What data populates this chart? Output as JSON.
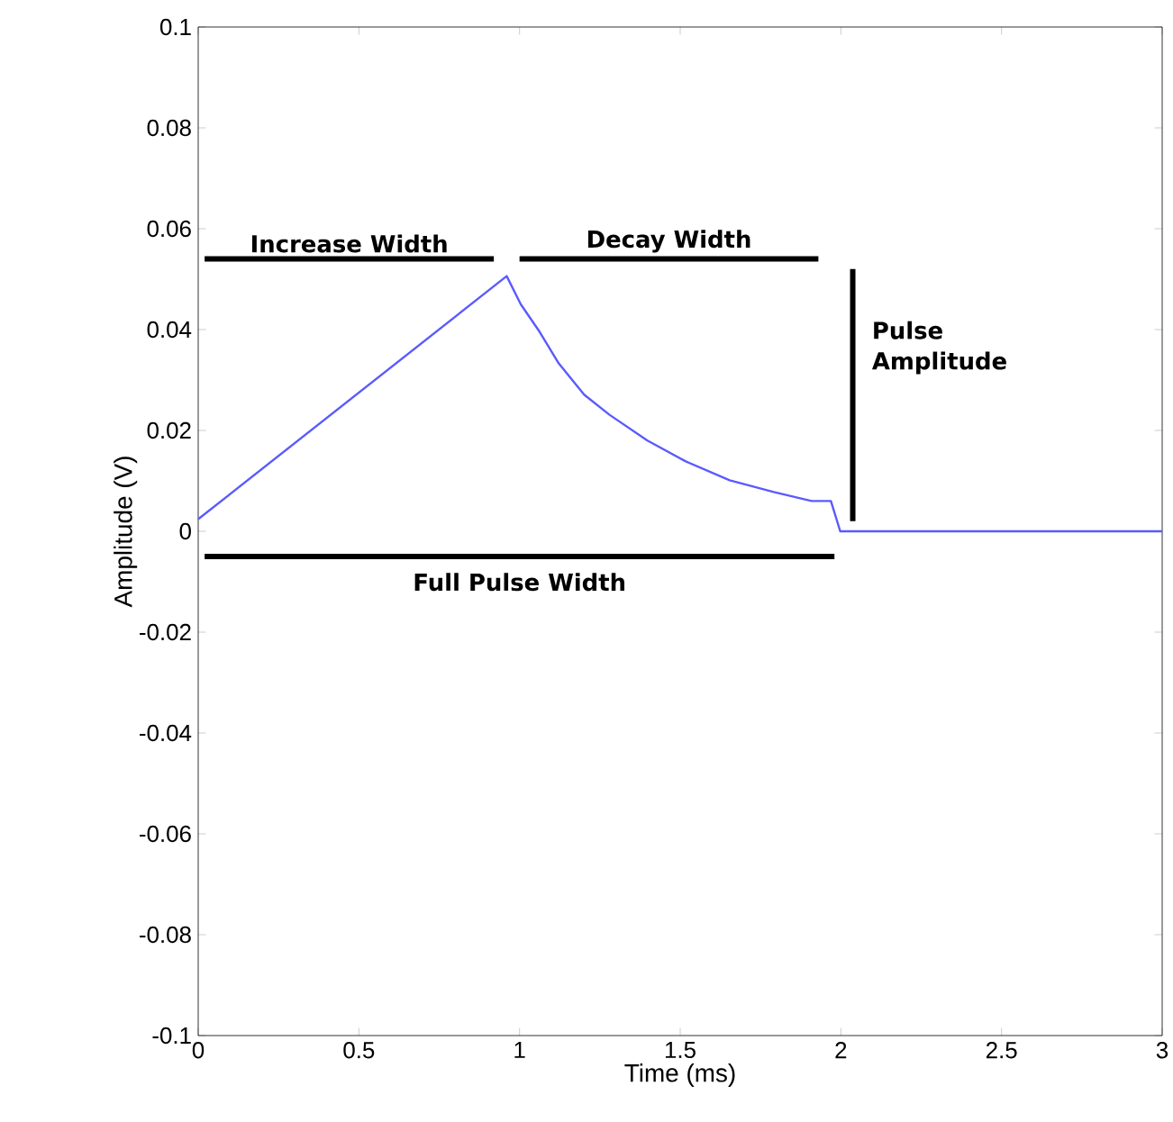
{
  "chart_data": {
    "type": "line",
    "xlabel": "Time (ms)",
    "ylabel": "Amplitude (V)",
    "x": [
      0,
      0.96,
      1.004,
      1.063,
      1.122,
      1.201,
      1.28,
      1.398,
      1.516,
      1.654,
      1.791,
      1.909,
      1.969,
      1.998,
      3.0
    ],
    "series": [
      {
        "color": "#5a5aff",
        "values": [
          0.0024,
          0.0506,
          0.045,
          0.0395,
          0.0333,
          0.0271,
          0.0231,
          0.018,
          0.0139,
          0.0101,
          0.0078,
          0.006,
          0.006,
          0,
          0
        ]
      },
      {
        "color": "#000000",
        "x": [
          0.02,
          0.92
        ],
        "values": [
          0.054,
          0.054
        ]
      },
      {
        "color": "#000000",
        "x": [
          1.0,
          1.93
        ],
        "values": [
          0.054,
          0.054
        ]
      },
      {
        "color": "#000000",
        "x": [
          2.037,
          2.037
        ],
        "values": [
          0.002,
          0.052
        ]
      },
      {
        "color": "#000000",
        "x": [
          0.02,
          1.98
        ],
        "values": [
          -0.005,
          -0.005
        ]
      }
    ],
    "xlim": [
      0,
      3
    ],
    "ylim": [
      -0.1,
      0.1
    ],
    "xticks": [
      0,
      0.5,
      1,
      1.5,
      2,
      2.5,
      3
    ],
    "yticks": [
      -0.1,
      -0.08,
      -0.06,
      -0.04,
      -0.02,
      0,
      0.02,
      0.04,
      0.06,
      0.08,
      0.1
    ],
    "annotations": [
      "Increase Width",
      "Decay Width",
      "Pulse Amplitude",
      "Full Pulse Width"
    ]
  }
}
